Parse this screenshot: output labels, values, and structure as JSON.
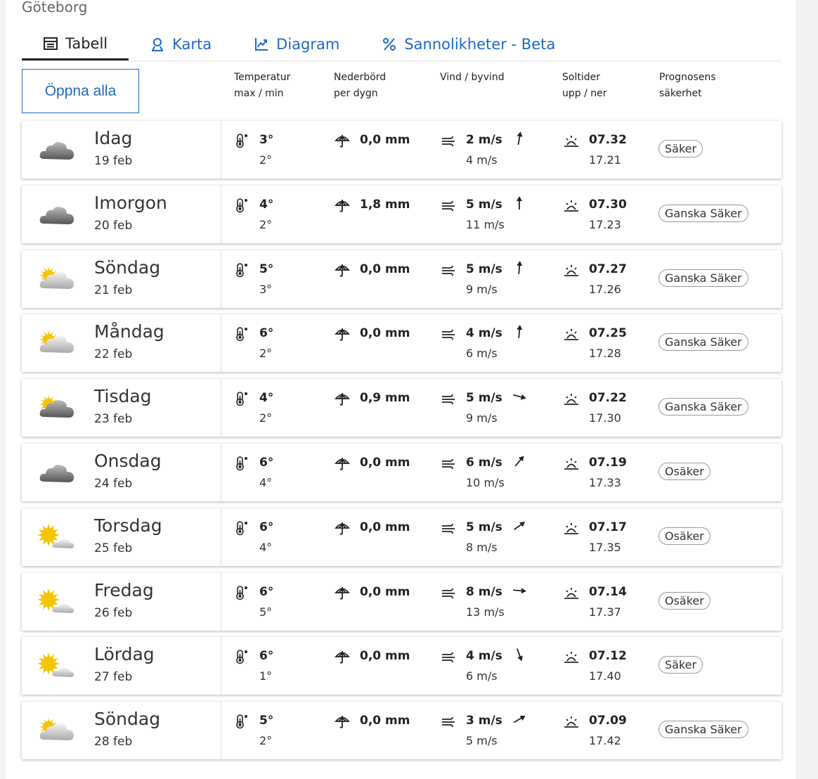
{
  "city": "Göteborg",
  "tabs": [
    {
      "label": "Tabell",
      "icon": "table-icon",
      "active": true
    },
    {
      "label": "Karta",
      "icon": "map-pin-icon"
    },
    {
      "label": "Diagram",
      "icon": "chart-icon"
    },
    {
      "label": "Sannolikheter - Beta",
      "icon": "percent-icon"
    }
  ],
  "open_all": "Öppna alla",
  "headers": {
    "temp": [
      "Temperatur",
      "max / min"
    ],
    "precip": [
      "Nederbörd",
      "per dygn"
    ],
    "wind": [
      "Vind / byvind",
      ""
    ],
    "sun": [
      "Soltider",
      "upp / ner"
    ],
    "cert": [
      "Prognosens",
      "säkerhet"
    ]
  },
  "colors": {
    "accent": "#1d69c1"
  },
  "rows": [
    {
      "day": "Idag",
      "date": "19 feb",
      "weather": "cloudy",
      "tmax": "3°",
      "tmin": "2°",
      "precip": "0,0 mm",
      "wind": "2 m/s",
      "gust": "4 m/s",
      "wind_dir_deg": 10,
      "sunrise": "07.32",
      "sunset": "17.21",
      "cert": "Säker"
    },
    {
      "day": "Imorgon",
      "date": "20 feb",
      "weather": "cloudy",
      "tmax": "4°",
      "tmin": "2°",
      "precip": "1,8 mm",
      "wind": "5 m/s",
      "gust": "11 m/s",
      "wind_dir_deg": 0,
      "sunrise": "07.30",
      "sunset": "17.23",
      "cert": "Ganska Säker"
    },
    {
      "day": "Söndag",
      "date": "21 feb",
      "weather": "partly-cloudy",
      "tmax": "5°",
      "tmin": "3°",
      "precip": "0,0 mm",
      "wind": "5 m/s",
      "gust": "9 m/s",
      "wind_dir_deg": 5,
      "sunrise": "07.27",
      "sunset": "17.26",
      "cert": "Ganska Säker"
    },
    {
      "day": "Måndag",
      "date": "22 feb",
      "weather": "partly-cloudy",
      "tmax": "6°",
      "tmin": "2°",
      "precip": "0,0 mm",
      "wind": "4 m/s",
      "gust": "6 m/s",
      "wind_dir_deg": 5,
      "sunrise": "07.25",
      "sunset": "17.28",
      "cert": "Ganska Säker"
    },
    {
      "day": "Tisdag",
      "date": "23 feb",
      "weather": "partly-cloudy-dark",
      "tmax": "4°",
      "tmin": "2°",
      "precip": "0,9 mm",
      "wind": "5 m/s",
      "gust": "9 m/s",
      "wind_dir_deg": 105,
      "sunrise": "07.22",
      "sunset": "17.30",
      "cert": "Ganska Säker"
    },
    {
      "day": "Onsdag",
      "date": "24 feb",
      "weather": "cloudy",
      "tmax": "6°",
      "tmin": "4°",
      "precip": "0,0 mm",
      "wind": "6 m/s",
      "gust": "10 m/s",
      "wind_dir_deg": 40,
      "sunrise": "07.19",
      "sunset": "17.33",
      "cert": "Osäker"
    },
    {
      "day": "Torsdag",
      "date": "25 feb",
      "weather": "mostly-sunny",
      "tmax": "6°",
      "tmin": "4°",
      "precip": "0,0 mm",
      "wind": "5 m/s",
      "gust": "8 m/s",
      "wind_dir_deg": 55,
      "sunrise": "07.17",
      "sunset": "17.35",
      "cert": "Osäker"
    },
    {
      "day": "Fredag",
      "date": "26 feb",
      "weather": "mostly-sunny",
      "tmax": "6°",
      "tmin": "5°",
      "precip": "0,0 mm",
      "wind": "8 m/s",
      "gust": "13 m/s",
      "wind_dir_deg": 95,
      "sunrise": "07.14",
      "sunset": "17.37",
      "cert": "Osäker"
    },
    {
      "day": "Lördag",
      "date": "27 feb",
      "weather": "mostly-sunny",
      "tmax": "6°",
      "tmin": "1°",
      "precip": "0,0 mm",
      "wind": "4 m/s",
      "gust": "6 m/s",
      "wind_dir_deg": 160,
      "sunrise": "07.12",
      "sunset": "17.40",
      "cert": "Säker"
    },
    {
      "day": "Söndag",
      "date": "28 feb",
      "weather": "partly-cloudy",
      "tmax": "5°",
      "tmin": "2°",
      "precip": "0,0 mm",
      "wind": "3 m/s",
      "gust": "5 m/s",
      "wind_dir_deg": 60,
      "sunrise": "07.09",
      "sunset": "17.42",
      "cert": "Ganska Säker"
    }
  ]
}
